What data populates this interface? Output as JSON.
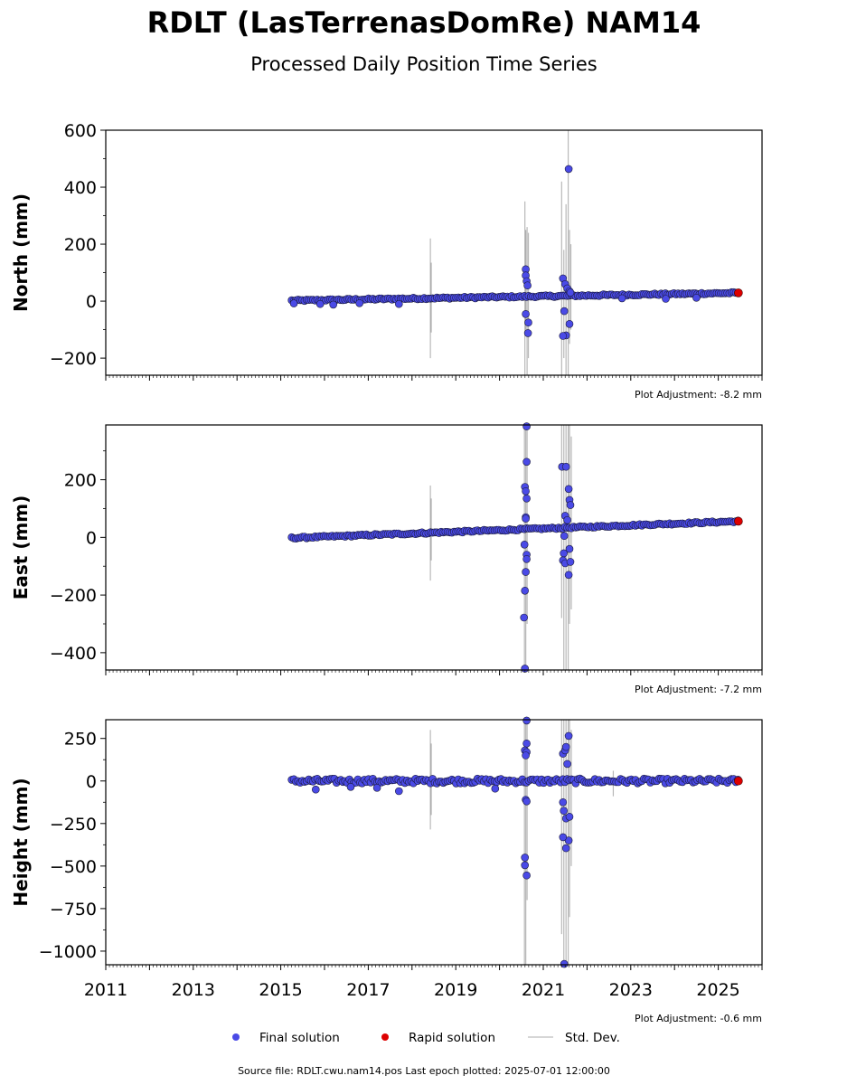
{
  "title": "RDLT (LasTerrenasDomRe) NAM14",
  "subtitle": "Processed Daily Position Time Series",
  "source_text": "Source file: RDLT.cwu.nam14.pos  Last epoch plotted: 2025-07-01 12:00:00",
  "legend": {
    "final": "Final solution",
    "rapid": "Rapid solution",
    "std": "Std. Dev."
  },
  "colors": {
    "final": "#4a4ae6",
    "final_edge": "#1a1a3a",
    "rapid": "#dd0000",
    "std": "#000000"
  },
  "chart_data": [
    {
      "type": "scatter",
      "ylabel": "North (mm)",
      "xlim": [
        2011,
        2026
      ],
      "ylim": [
        -260,
        600
      ],
      "yticks": [
        -200,
        0,
        200,
        400,
        600
      ],
      "xticks": [
        2011,
        2013,
        2015,
        2017,
        2019,
        2021,
        2023,
        2025
      ],
      "show_xtick_labels": false,
      "adjustment": "Plot Adjustment: -8.2 mm",
      "trend": {
        "x_start": 2015.25,
        "y_start": 2,
        "x_end": 2025.45,
        "y_end": 29
      },
      "noise": 3,
      "rapid": {
        "x": 2025.46,
        "y": 29
      },
      "outliers": [
        {
          "x": 2015.3,
          "y": -8
        },
        {
          "x": 2015.9,
          "y": -10
        },
        {
          "x": 2016.2,
          "y": -12
        },
        {
          "x": 2016.8,
          "y": -7
        },
        {
          "x": 2017.7,
          "y": -10
        },
        {
          "x": 2020.6,
          "y": 112
        },
        {
          "x": 2020.6,
          "y": 90
        },
        {
          "x": 2020.62,
          "y": 70
        },
        {
          "x": 2020.64,
          "y": 55
        },
        {
          "x": 2020.6,
          "y": -45
        },
        {
          "x": 2020.66,
          "y": -75
        },
        {
          "x": 2020.65,
          "y": -112
        },
        {
          "x": 2021.45,
          "y": 80
        },
        {
          "x": 2021.5,
          "y": 60
        },
        {
          "x": 2021.55,
          "y": 45
        },
        {
          "x": 2021.48,
          "y": -35
        },
        {
          "x": 2021.52,
          "y": -120
        },
        {
          "x": 2021.45,
          "y": -122
        },
        {
          "x": 2021.58,
          "y": 464
        },
        {
          "x": 2021.6,
          "y": -80
        },
        {
          "x": 2021.6,
          "y": 35
        },
        {
          "x": 2021.62,
          "y": 30
        },
        {
          "x": 2022.8,
          "y": 10
        },
        {
          "x": 2023.8,
          "y": 8
        },
        {
          "x": 2024.5,
          "y": 12
        }
      ],
      "error_bars": [
        {
          "x": 2018.42,
          "lo": -200,
          "hi": 220
        },
        {
          "x": 2018.44,
          "lo": -110,
          "hi": 135
        },
        {
          "x": 2020.58,
          "lo": -280,
          "hi": 350
        },
        {
          "x": 2020.6,
          "lo": -120,
          "hi": 250
        },
        {
          "x": 2020.63,
          "lo": -260,
          "hi": 260
        },
        {
          "x": 2020.66,
          "lo": -200,
          "hi": 240
        },
        {
          "x": 2021.42,
          "lo": -260,
          "hi": 420
        },
        {
          "x": 2021.47,
          "lo": -200,
          "hi": 180
        },
        {
          "x": 2021.52,
          "lo": -260,
          "hi": 340
        },
        {
          "x": 2021.57,
          "lo": -260,
          "hi": 600
        },
        {
          "x": 2021.6,
          "lo": -150,
          "hi": 250
        },
        {
          "x": 2021.63,
          "lo": -100,
          "hi": 200
        }
      ]
    },
    {
      "type": "scatter",
      "ylabel": "East (mm)",
      "xlim": [
        2011,
        2026
      ],
      "ylim": [
        -460,
        390
      ],
      "yticks": [
        -400,
        -200,
        0,
        200
      ],
      "xticks": [
        2011,
        2013,
        2015,
        2017,
        2019,
        2021,
        2023,
        2025
      ],
      "show_xtick_labels": false,
      "adjustment": "Plot Adjustment: -7.2 mm",
      "trend": {
        "x_start": 2015.25,
        "y_start": -2,
        "x_end": 2025.45,
        "y_end": 56
      },
      "noise": 3,
      "rapid": {
        "x": 2025.46,
        "y": 56
      },
      "outliers": [
        {
          "x": 2020.62,
          "y": 385
        },
        {
          "x": 2020.62,
          "y": 262
        },
        {
          "x": 2020.58,
          "y": 175
        },
        {
          "x": 2020.6,
          "y": 160
        },
        {
          "x": 2020.62,
          "y": 135
        },
        {
          "x": 2020.6,
          "y": 70
        },
        {
          "x": 2020.6,
          "y": 65
        },
        {
          "x": 2020.57,
          "y": -25
        },
        {
          "x": 2020.62,
          "y": -60
        },
        {
          "x": 2020.62,
          "y": -75
        },
        {
          "x": 2020.6,
          "y": -120
        },
        {
          "x": 2020.58,
          "y": -185
        },
        {
          "x": 2020.56,
          "y": -278
        },
        {
          "x": 2020.58,
          "y": -455
        },
        {
          "x": 2021.43,
          "y": 245
        },
        {
          "x": 2021.52,
          "y": 245
        },
        {
          "x": 2021.58,
          "y": 168
        },
        {
          "x": 2021.6,
          "y": 130
        },
        {
          "x": 2021.62,
          "y": 112
        },
        {
          "x": 2021.5,
          "y": 75
        },
        {
          "x": 2021.55,
          "y": 60
        },
        {
          "x": 2021.48,
          "y": 5
        },
        {
          "x": 2021.47,
          "y": -55
        },
        {
          "x": 2021.45,
          "y": -80
        },
        {
          "x": 2021.5,
          "y": -90
        },
        {
          "x": 2021.6,
          "y": -40
        },
        {
          "x": 2021.62,
          "y": -85
        },
        {
          "x": 2021.58,
          "y": -130
        }
      ],
      "error_bars": [
        {
          "x": 2018.42,
          "lo": -150,
          "hi": 180
        },
        {
          "x": 2018.44,
          "lo": -80,
          "hi": 135
        },
        {
          "x": 2020.57,
          "lo": -460,
          "hi": 390
        },
        {
          "x": 2020.6,
          "lo": -460,
          "hi": 390
        },
        {
          "x": 2020.63,
          "lo": -300,
          "hi": 390
        },
        {
          "x": 2021.42,
          "lo": -280,
          "hi": 390
        },
        {
          "x": 2021.47,
          "lo": -460,
          "hi": 390
        },
        {
          "x": 2021.52,
          "lo": -460,
          "hi": 390
        },
        {
          "x": 2021.57,
          "lo": -460,
          "hi": 390
        },
        {
          "x": 2021.6,
          "lo": -300,
          "hi": 390
        },
        {
          "x": 2021.64,
          "lo": -250,
          "hi": 350
        }
      ]
    },
    {
      "type": "scatter",
      "ylabel": "Height (mm)",
      "xlim": [
        2011,
        2026
      ],
      "ylim": [
        -1080,
        360
      ],
      "yticks": [
        -1000,
        -750,
        -500,
        -250,
        0,
        250
      ],
      "xticks": [
        2011,
        2013,
        2015,
        2017,
        2019,
        2021,
        2023,
        2025
      ],
      "show_xtick_labels": true,
      "adjustment": "Plot Adjustment: -0.6 mm",
      "trend": {
        "x_start": 2015.25,
        "y_start": 0,
        "x_end": 2025.45,
        "y_end": 0
      },
      "noise": 14,
      "rapid": {
        "x": 2025.46,
        "y": 0
      },
      "outliers": [
        {
          "x": 2015.8,
          "y": -50
        },
        {
          "x": 2016.6,
          "y": -35
        },
        {
          "x": 2017.2,
          "y": -40
        },
        {
          "x": 2017.7,
          "y": -60
        },
        {
          "x": 2019.9,
          "y": -45
        },
        {
          "x": 2020.62,
          "y": 355
        },
        {
          "x": 2020.62,
          "y": 220
        },
        {
          "x": 2020.58,
          "y": 180
        },
        {
          "x": 2020.62,
          "y": 170
        },
        {
          "x": 2020.6,
          "y": 150
        },
        {
          "x": 2020.6,
          "y": -110
        },
        {
          "x": 2020.62,
          "y": -120
        },
        {
          "x": 2020.58,
          "y": -450
        },
        {
          "x": 2020.58,
          "y": -495
        },
        {
          "x": 2020.62,
          "y": -555
        },
        {
          "x": 2021.45,
          "y": 160
        },
        {
          "x": 2021.5,
          "y": 180
        },
        {
          "x": 2021.52,
          "y": 200
        },
        {
          "x": 2021.58,
          "y": 265
        },
        {
          "x": 2021.55,
          "y": 100
        },
        {
          "x": 2021.45,
          "y": -125
        },
        {
          "x": 2021.47,
          "y": -175
        },
        {
          "x": 2021.52,
          "y": -220
        },
        {
          "x": 2021.6,
          "y": -210
        },
        {
          "x": 2021.58,
          "y": -350
        },
        {
          "x": 2021.45,
          "y": -330
        },
        {
          "x": 2021.52,
          "y": -395
        },
        {
          "x": 2021.48,
          "y": -1075
        }
      ],
      "error_bars": [
        {
          "x": 2018.42,
          "lo": -285,
          "hi": 300
        },
        {
          "x": 2018.44,
          "lo": -200,
          "hi": 220
        },
        {
          "x": 2020.57,
          "lo": -1080,
          "hi": 360
        },
        {
          "x": 2020.6,
          "lo": -1080,
          "hi": 360
        },
        {
          "x": 2020.63,
          "lo": -700,
          "hi": 360
        },
        {
          "x": 2021.42,
          "lo": -900,
          "hi": 360
        },
        {
          "x": 2021.47,
          "lo": -1080,
          "hi": 360
        },
        {
          "x": 2021.52,
          "lo": -1080,
          "hi": 360
        },
        {
          "x": 2021.57,
          "lo": -1080,
          "hi": 360
        },
        {
          "x": 2021.6,
          "lo": -800,
          "hi": 360
        },
        {
          "x": 2021.64,
          "lo": -500,
          "hi": 300
        },
        {
          "x": 2022.6,
          "lo": -90,
          "hi": 60
        }
      ]
    }
  ]
}
